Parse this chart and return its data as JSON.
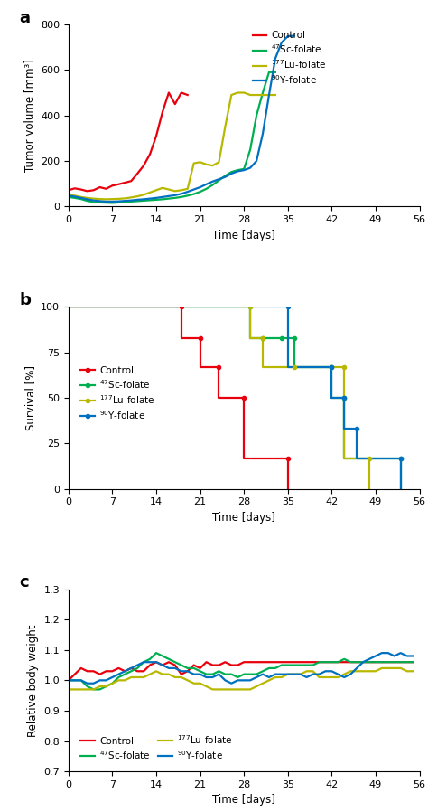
{
  "panel_a": {
    "title": "a",
    "ylabel": "Tumor volume [mm³]",
    "xlabel": "Time [days]",
    "xlim": [
      0,
      56
    ],
    "ylim": [
      0,
      800
    ],
    "yticks": [
      0,
      200,
      400,
      600,
      800
    ],
    "xticks": [
      0,
      7,
      14,
      21,
      28,
      35,
      42,
      49,
      56
    ],
    "control": {
      "x": [
        0,
        1,
        2,
        3,
        4,
        5,
        6,
        7,
        8,
        9,
        10,
        11,
        12,
        13,
        14,
        15,
        16,
        17,
        18,
        19
      ],
      "y": [
        72,
        80,
        75,
        68,
        72,
        85,
        78,
        92,
        98,
        105,
        112,
        145,
        180,
        230,
        310,
        415,
        500,
        450,
        500,
        490
      ],
      "color": "#e8000d"
    },
    "sc47": {
      "x": [
        0,
        1,
        2,
        3,
        4,
        5,
        6,
        7,
        8,
        9,
        10,
        11,
        12,
        13,
        14,
        15,
        16,
        17,
        18,
        19,
        20,
        21,
        22,
        23,
        24,
        25,
        26,
        27,
        28,
        29,
        30,
        31,
        32,
        33
      ],
      "y": [
        42,
        38,
        33,
        25,
        20,
        18,
        17,
        16,
        18,
        20,
        22,
        24,
        26,
        28,
        30,
        32,
        35,
        38,
        42,
        48,
        55,
        65,
        78,
        95,
        115,
        135,
        152,
        160,
        165,
        250,
        400,
        500,
        590,
        590
      ],
      "color": "#00b050"
    },
    "lu177": {
      "x": [
        0,
        1,
        2,
        3,
        4,
        5,
        6,
        7,
        8,
        9,
        10,
        11,
        12,
        13,
        14,
        15,
        16,
        17,
        18,
        19,
        20,
        21,
        22,
        23,
        24,
        25,
        26,
        27,
        28,
        29,
        30,
        31,
        32,
        33
      ],
      "y": [
        52,
        48,
        42,
        38,
        35,
        33,
        32,
        33,
        34,
        36,
        40,
        45,
        52,
        62,
        72,
        82,
        75,
        68,
        72,
        78,
        190,
        195,
        185,
        180,
        195,
        350,
        490,
        500,
        500,
        490,
        490,
        490,
        490,
        490
      ],
      "color": "#b8b800"
    },
    "y90": {
      "x": [
        0,
        1,
        2,
        3,
        4,
        5,
        6,
        7,
        8,
        9,
        10,
        11,
        12,
        13,
        14,
        15,
        16,
        17,
        18,
        19,
        20,
        21,
        22,
        23,
        24,
        25,
        26,
        27,
        28,
        29,
        30,
        31,
        32,
        33,
        34,
        35,
        36
      ],
      "y": [
        48,
        44,
        38,
        32,
        27,
        24,
        22,
        22,
        23,
        25,
        27,
        30,
        32,
        35,
        38,
        42,
        46,
        50,
        56,
        65,
        75,
        85,
        98,
        110,
        120,
        130,
        145,
        155,
        160,
        170,
        200,
        320,
        490,
        650,
        720,
        748,
        750
      ],
      "color": "#0070c0"
    },
    "legend": [
      {
        "label": "Control",
        "color": "#e8000d"
      },
      {
        "label": "$^{47}$Sc-folate",
        "color": "#00b050"
      },
      {
        "label": "$^{177}$Lu-folate",
        "color": "#b8b800"
      },
      {
        "label": "$^{90}$Y-folate",
        "color": "#0070c0"
      }
    ]
  },
  "panel_b": {
    "title": "b",
    "ylabel": "Survival [%]",
    "xlabel": "Time [days]",
    "xlim": [
      0,
      56
    ],
    "ylim": [
      0,
      100
    ],
    "yticks": [
      0,
      25,
      50,
      75,
      100
    ],
    "xticks": [
      0,
      7,
      14,
      21,
      28,
      35,
      42,
      49,
      56
    ],
    "control": {
      "x": [
        0,
        18,
        18,
        21,
        21,
        24,
        24,
        28,
        28,
        35,
        35
      ],
      "y": [
        100,
        100,
        83,
        83,
        67,
        67,
        50,
        50,
        17,
        17,
        0
      ],
      "color": "#e8000d",
      "dots": [
        [
          18,
          100
        ],
        [
          21,
          83
        ],
        [
          24,
          67
        ],
        [
          28,
          50
        ],
        [
          35,
          17
        ]
      ]
    },
    "sc47": {
      "x": [
        0,
        29,
        29,
        31,
        31,
        34,
        34,
        36,
        36,
        42,
        42,
        44,
        44,
        53,
        53
      ],
      "y": [
        100,
        100,
        83,
        83,
        83,
        83,
        83,
        83,
        67,
        67,
        50,
        50,
        17,
        17,
        0
      ],
      "color": "#00b050",
      "dots": [
        [
          29,
          100
        ],
        [
          31,
          83
        ],
        [
          34,
          83
        ],
        [
          36,
          83
        ],
        [
          42,
          67
        ],
        [
          44,
          50
        ],
        [
          53,
          17
        ]
      ]
    },
    "lu177": {
      "x": [
        0,
        29,
        29,
        31,
        31,
        36,
        36,
        42,
        42,
        44,
        44,
        48,
        48
      ],
      "y": [
        100,
        100,
        83,
        83,
        67,
        67,
        67,
        67,
        67,
        67,
        17,
        17,
        0
      ],
      "color": "#b8b800",
      "dots": [
        [
          29,
          100
        ],
        [
          31,
          83
        ],
        [
          36,
          67
        ],
        [
          42,
          67
        ],
        [
          44,
          67
        ],
        [
          48,
          17
        ]
      ]
    },
    "y90": {
      "x": [
        0,
        35,
        35,
        42,
        42,
        44,
        44,
        46,
        46,
        53,
        53
      ],
      "y": [
        100,
        100,
        67,
        67,
        50,
        50,
        33,
        33,
        17,
        17,
        0
      ],
      "color": "#0070c0",
      "dots": [
        [
          35,
          100
        ],
        [
          42,
          67
        ],
        [
          44,
          50
        ],
        [
          46,
          33
        ],
        [
          53,
          17
        ]
      ]
    },
    "legend": [
      {
        "label": "Control",
        "color": "#e8000d"
      },
      {
        "label": "$^{47}$Sc-folate",
        "color": "#00b050"
      },
      {
        "label": "$^{177}$Lu-folate",
        "color": "#b8b800"
      },
      {
        "label": "$^{90}$Y-folate",
        "color": "#0070c0"
      }
    ]
  },
  "panel_c": {
    "title": "c",
    "ylabel": "Relative body weight",
    "xlabel": "Time [days]",
    "xlim": [
      0,
      56
    ],
    "ylim": [
      0.7,
      1.3
    ],
    "yticks": [
      0.7,
      0.8,
      0.9,
      1.0,
      1.1,
      1.2,
      1.3
    ],
    "xticks": [
      0,
      7,
      14,
      21,
      28,
      35,
      42,
      49,
      56
    ],
    "control": {
      "x": [
        0,
        1,
        2,
        3,
        4,
        5,
        6,
        7,
        8,
        9,
        10,
        11,
        12,
        13,
        14,
        15,
        16,
        17,
        18,
        19,
        20,
        21,
        22,
        23,
        24,
        25,
        26,
        27,
        28,
        29,
        30,
        31,
        32,
        33,
        34,
        35,
        36,
        37,
        38,
        39,
        40,
        41,
        42,
        43,
        44,
        45,
        46,
        47,
        48,
        49,
        50,
        51,
        52,
        53,
        54,
        55
      ],
      "y": [
        1.0,
        1.02,
        1.04,
        1.03,
        1.03,
        1.02,
        1.03,
        1.03,
        1.04,
        1.03,
        1.04,
        1.03,
        1.03,
        1.05,
        1.06,
        1.05,
        1.06,
        1.05,
        1.02,
        1.03,
        1.05,
        1.04,
        1.06,
        1.05,
        1.05,
        1.06,
        1.05,
        1.05,
        1.06,
        1.06,
        1.06,
        1.06,
        1.06,
        1.06,
        1.06,
        1.06,
        1.06,
        1.06,
        1.06,
        1.06,
        1.06,
        1.06,
        1.06,
        1.06,
        1.06,
        1.06,
        1.06,
        1.06,
        1.06,
        1.06,
        1.06,
        1.06,
        1.06,
        1.06,
        1.06,
        1.06
      ],
      "color": "#e8000d"
    },
    "sc47": {
      "x": [
        0,
        1,
        2,
        3,
        4,
        5,
        6,
        7,
        8,
        9,
        10,
        11,
        12,
        13,
        14,
        15,
        16,
        17,
        18,
        19,
        20,
        21,
        22,
        23,
        24,
        25,
        26,
        27,
        28,
        29,
        30,
        31,
        32,
        33,
        34,
        35,
        36,
        37,
        38,
        39,
        40,
        41,
        42,
        43,
        44,
        45,
        46,
        47,
        48,
        49,
        50,
        51,
        52,
        53,
        54,
        55
      ],
      "y": [
        1.0,
        1.0,
        1.0,
        0.98,
        0.97,
        0.97,
        0.98,
        0.99,
        1.01,
        1.02,
        1.03,
        1.04,
        1.06,
        1.07,
        1.09,
        1.08,
        1.07,
        1.06,
        1.05,
        1.04,
        1.04,
        1.03,
        1.02,
        1.02,
        1.03,
        1.02,
        1.02,
        1.01,
        1.02,
        1.02,
        1.02,
        1.03,
        1.04,
        1.04,
        1.05,
        1.05,
        1.05,
        1.05,
        1.05,
        1.05,
        1.06,
        1.06,
        1.06,
        1.06,
        1.07,
        1.06,
        1.06,
        1.06,
        1.06,
        1.06,
        1.06,
        1.06,
        1.06,
        1.06,
        1.06,
        1.06
      ],
      "color": "#00b050"
    },
    "lu177": {
      "x": [
        0,
        1,
        2,
        3,
        4,
        5,
        6,
        7,
        8,
        9,
        10,
        11,
        12,
        13,
        14,
        15,
        16,
        17,
        18,
        19,
        20,
        21,
        22,
        23,
        24,
        25,
        26,
        27,
        28,
        29,
        30,
        31,
        32,
        33,
        34,
        35,
        36,
        37,
        38,
        39,
        40,
        41,
        42,
        43,
        44,
        45,
        46,
        47,
        48,
        49,
        50,
        51,
        52,
        53,
        54,
        55
      ],
      "y": [
        0.97,
        0.97,
        0.97,
        0.97,
        0.97,
        0.98,
        0.98,
        0.99,
        1.0,
        1.0,
        1.01,
        1.01,
        1.01,
        1.02,
        1.03,
        1.02,
        1.02,
        1.01,
        1.01,
        1.0,
        0.99,
        0.99,
        0.98,
        0.97,
        0.97,
        0.97,
        0.97,
        0.97,
        0.97,
        0.97,
        0.98,
        0.99,
        1.0,
        1.01,
        1.01,
        1.02,
        1.02,
        1.02,
        1.03,
        1.03,
        1.01,
        1.01,
        1.01,
        1.01,
        1.02,
        1.03,
        1.03,
        1.03,
        1.03,
        1.03,
        1.04,
        1.04,
        1.04,
        1.04,
        1.03,
        1.03
      ],
      "color": "#b8b800"
    },
    "y90": {
      "x": [
        0,
        1,
        2,
        3,
        4,
        5,
        6,
        7,
        8,
        9,
        10,
        11,
        12,
        13,
        14,
        15,
        16,
        17,
        18,
        19,
        20,
        21,
        22,
        23,
        24,
        25,
        26,
        27,
        28,
        29,
        30,
        31,
        32,
        33,
        34,
        35,
        36,
        37,
        38,
        39,
        40,
        41,
        42,
        43,
        44,
        45,
        46,
        47,
        48,
        49,
        50,
        51,
        52,
        53,
        54,
        55
      ],
      "y": [
        1.0,
        1.0,
        1.0,
        0.99,
        0.99,
        1.0,
        1.0,
        1.01,
        1.02,
        1.03,
        1.04,
        1.05,
        1.06,
        1.06,
        1.06,
        1.05,
        1.04,
        1.04,
        1.03,
        1.03,
        1.02,
        1.02,
        1.01,
        1.01,
        1.02,
        1.0,
        0.99,
        1.0,
        1.0,
        1.0,
        1.01,
        1.02,
        1.01,
        1.02,
        1.02,
        1.02,
        1.02,
        1.02,
        1.01,
        1.02,
        1.02,
        1.03,
        1.03,
        1.02,
        1.01,
        1.02,
        1.04,
        1.06,
        1.07,
        1.08,
        1.09,
        1.09,
        1.08,
        1.09,
        1.08,
        1.08
      ],
      "color": "#0070c0"
    },
    "legend": [
      {
        "label": "Control",
        "color": "#e8000d"
      },
      {
        "label": "$^{47}$Sc-folate",
        "color": "#00b050"
      },
      {
        "label": "$^{177}$Lu-folate",
        "color": "#b8b800"
      },
      {
        "label": "$^{90}$Y-folate",
        "color": "#0070c0"
      }
    ]
  },
  "bg_color": "#ffffff",
  "linewidth": 1.6
}
